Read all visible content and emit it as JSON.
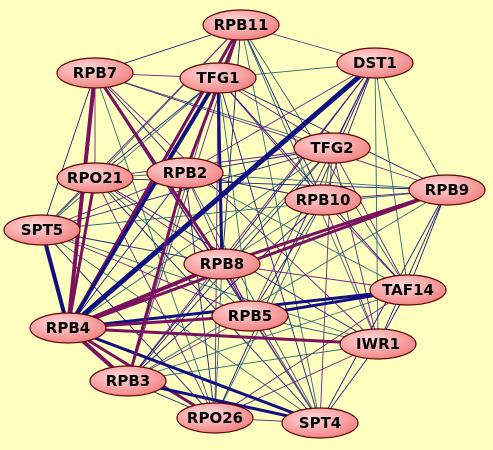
{
  "nodes": [
    {
      "label": "RPB11"
    },
    {
      "label": "RPB7"
    },
    {
      "label": "TFG1"
    },
    {
      "label": "DST1"
    },
    {
      "label": "TFG2"
    },
    {
      "label": "RPO21"
    },
    {
      "label": "RPB2"
    },
    {
      "label": "RPB10"
    },
    {
      "label": "RPB9"
    },
    {
      "label": "SPT5"
    },
    {
      "label": "RPB8"
    },
    {
      "label": "TAF14"
    },
    {
      "label": "RPB5"
    },
    {
      "label": "RPB4"
    },
    {
      "label": "IWR1"
    },
    {
      "label": "RPB3"
    },
    {
      "label": "RPO26"
    },
    {
      "label": "SPT4"
    }
  ]
}
